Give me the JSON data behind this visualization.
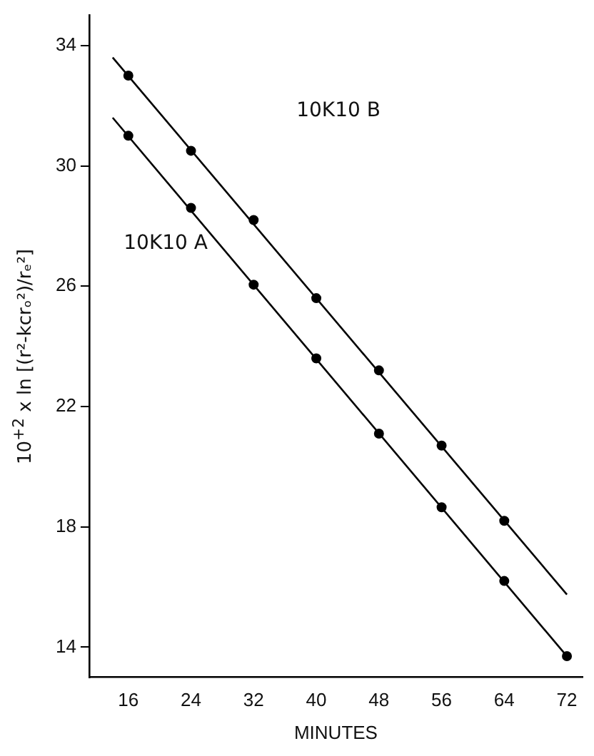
{
  "chart_data": {
    "type": "scatter",
    "xlabel": "MINUTES",
    "ylabel": "10$^{+2}$ x ln [(r²-kcrₒ²)/rₑ²]",
    "x": [
      16,
      24,
      32,
      40,
      48,
      56,
      64,
      72
    ],
    "series": [
      {
        "color": "#000000",
        "x": [
          16,
          24,
          32,
          40,
          48,
          56,
          64
        ],
        "values": [
          33.0,
          30.5,
          28.2,
          25.6,
          23.2,
          20.7,
          18.2
        ]
      },
      {
        "color": "#000000",
        "values": [
          31.0,
          28.6,
          26.05,
          23.6,
          21.1,
          18.65,
          16.2,
          13.7
        ]
      },
      {
        "type": "line",
        "marker": "none",
        "color": "#000000",
        "x": [
          14,
          72
        ],
        "values": [
          33.6,
          15.75
        ]
      },
      {
        "type": "line",
        "marker": "none",
        "color": "#000000",
        "x": [
          14,
          72
        ],
        "values": [
          31.6,
          13.7
        ]
      }
    ],
    "annotations": [
      "10K10 B",
      "10K10 A"
    ],
    "xlim": [
      11,
      74
    ],
    "ylim": [
      13,
      35
    ],
    "xticks": [
      16,
      24,
      32,
      40,
      48,
      56,
      64,
      72
    ],
    "yticks": [
      14,
      18,
      22,
      26,
      30,
      34
    ],
    "marker": "circle",
    "line_style": "solid",
    "grid": false,
    "legend": false
  }
}
